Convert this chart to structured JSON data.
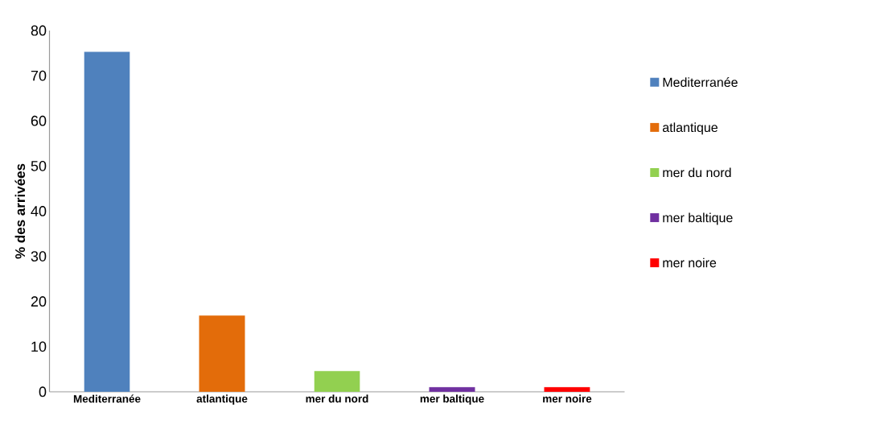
{
  "chart_data": {
    "type": "bar",
    "ylabel": "% des arrivées",
    "categories": [
      "Mediterranée",
      "atlantique",
      "mer du nord",
      "mer baltique",
      "mer noire"
    ],
    "series": [
      {
        "name": "Mediterranée",
        "color": "#4f81bd",
        "values": [
          75.3,
          null,
          null,
          null,
          null
        ]
      },
      {
        "name": "atlantique",
        "color": "#e36c0a",
        "values": [
          null,
          16.9,
          null,
          null,
          null
        ]
      },
      {
        "name": "mer du nord",
        "color": "#92d050",
        "values": [
          null,
          null,
          4.6,
          null,
          null
        ]
      },
      {
        "name": "mer baltique",
        "color": "#7030a0",
        "values": [
          null,
          null,
          null,
          1.0,
          null
        ]
      },
      {
        "name": "mer noire",
        "color": "#ff0000",
        "values": [
          null,
          null,
          null,
          null,
          1.0
        ]
      }
    ],
    "ylim": [
      0,
      80
    ],
    "yticks": [
      0,
      10,
      20,
      30,
      40,
      50,
      60,
      70,
      80
    ],
    "legend": "right",
    "grid": false
  }
}
